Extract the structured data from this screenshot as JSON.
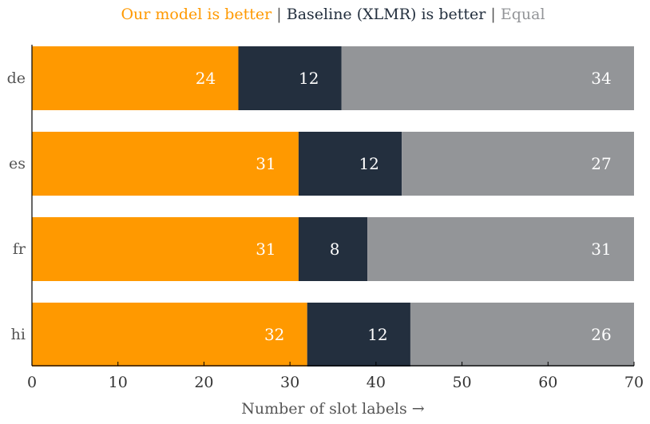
{
  "chart_data": {
    "type": "bar",
    "orientation": "horizontal",
    "stacked": true,
    "categories": [
      "de",
      "es",
      "fr",
      "hi"
    ],
    "series": [
      {
        "name": "Our model is better",
        "color": "#FF9900",
        "values": [
          24,
          31,
          31,
          32
        ]
      },
      {
        "name": "Baseline (XLMR) is better",
        "color": "#232F3E",
        "values": [
          12,
          12,
          8,
          12
        ]
      },
      {
        "name": "Equal",
        "color": "#939598",
        "values": [
          34,
          27,
          31,
          26
        ]
      }
    ],
    "legend": {
      "placement": "top",
      "separator": "|",
      "separator_color": "#555555"
    },
    "title": "",
    "xlabel": "Number of slot labels →",
    "ylabel": "",
    "xlim": [
      0,
      70
    ],
    "xticks": [
      0,
      10,
      20,
      30,
      40,
      50,
      60,
      70
    ],
    "grid": false
  }
}
